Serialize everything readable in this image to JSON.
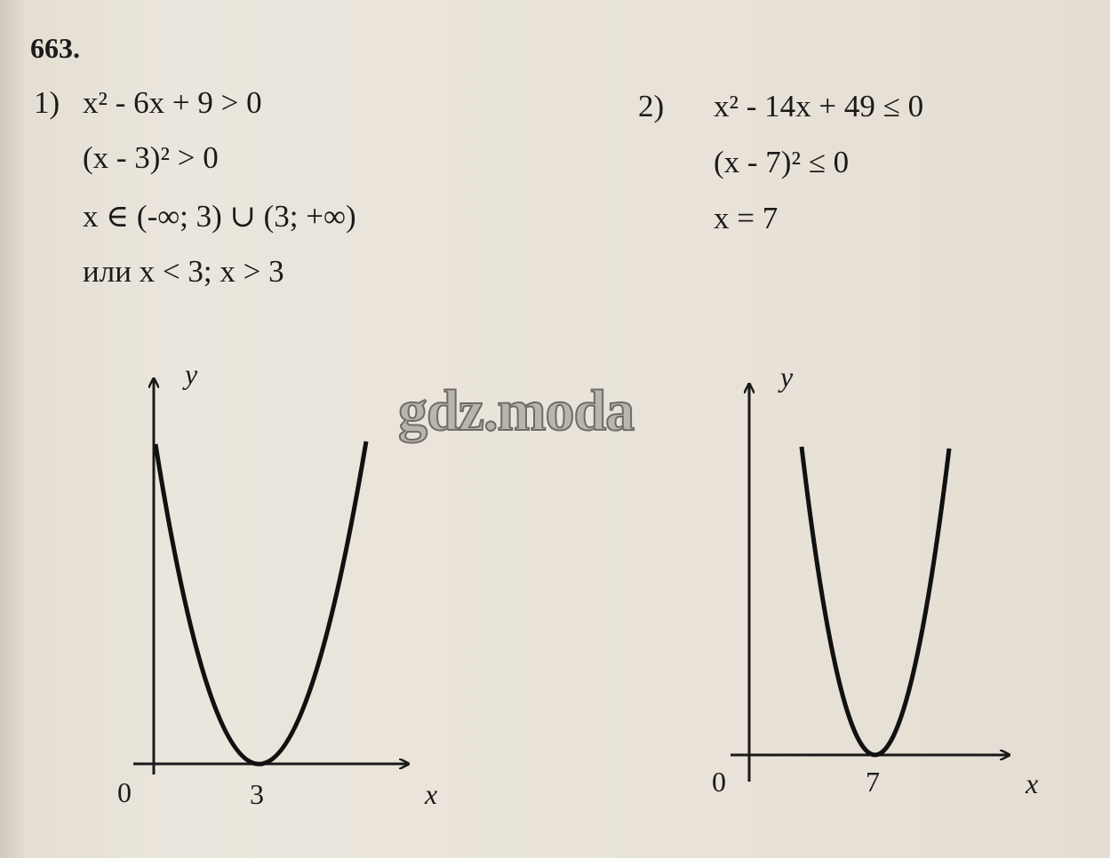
{
  "problem_number": "663.",
  "part1": {
    "label": "1)",
    "lines": [
      "x² - 6x + 9 > 0",
      "(x - 3)² > 0",
      "x ∈ (-∞; 3) ∪ (3; +∞)",
      "или x < 3;  x > 3"
    ],
    "graph": {
      "origin": "0",
      "vertex_label": "3",
      "x_axis": "x",
      "y_axis": "y"
    }
  },
  "part2": {
    "label": "2)",
    "lines": [
      "x² - 14x + 49 ≤ 0",
      "(x - 7)² ≤ 0",
      "x = 7"
    ],
    "graph": {
      "origin": "0",
      "vertex_label": "7",
      "x_axis": "x",
      "y_axis": "y"
    }
  },
  "watermark": "gdz.moda"
}
